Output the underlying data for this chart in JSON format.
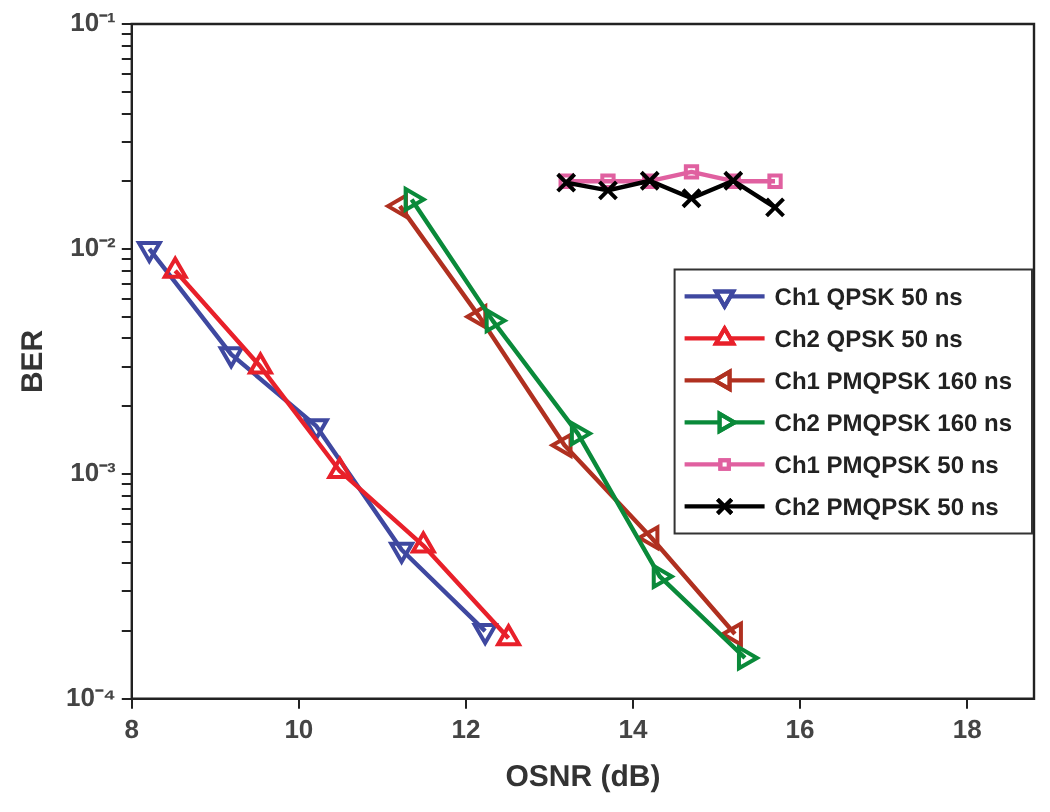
{
  "chart_data": {
    "type": "line",
    "xlabel": "OSNR (dB)",
    "ylabel": "BER",
    "log": "y",
    "legend": "right",
    "grid": false,
    "line_style": "solid",
    "xlim": [
      8,
      18.8
    ],
    "xticks": [
      8,
      10,
      12,
      14,
      16,
      18
    ],
    "ylim": [
      0.0001,
      0.1
    ],
    "yticks": [
      {
        "value": 0.0001,
        "label": "10⁻⁴"
      },
      {
        "value": 0.0002,
        "label": null
      },
      {
        "value": 0.0003,
        "label": null
      },
      {
        "value": 0.0004,
        "label": null
      },
      {
        "value": 0.0005,
        "label": null
      },
      {
        "value": 0.0006,
        "label": null
      },
      {
        "value": 0.0007,
        "label": null
      },
      {
        "value": 0.0008,
        "label": null
      },
      {
        "value": 0.0009,
        "label": null
      },
      {
        "value": 0.001,
        "label": "10⁻³"
      },
      {
        "value": 0.002,
        "label": null
      },
      {
        "value": 0.003,
        "label": null
      },
      {
        "value": 0.004,
        "label": null
      },
      {
        "value": 0.005,
        "label": null
      },
      {
        "value": 0.006,
        "label": null
      },
      {
        "value": 0.007,
        "label": null
      },
      {
        "value": 0.008,
        "label": null
      },
      {
        "value": 0.009,
        "label": null
      },
      {
        "value": 0.01,
        "label": "10⁻²"
      },
      {
        "value": 0.02,
        "label": null
      },
      {
        "value": 0.03,
        "label": null
      },
      {
        "value": 0.04,
        "label": null
      },
      {
        "value": 0.05,
        "label": null
      },
      {
        "value": 0.06,
        "label": null
      },
      {
        "value": 0.07,
        "label": null
      },
      {
        "value": 0.08,
        "label": null
      },
      {
        "value": 0.09,
        "label": null
      },
      {
        "value": 0.1,
        "label": "10⁻¹"
      }
    ],
    "series": [
      {
        "name": "Ch1 QPSK 50 ns",
        "color": "#3f48a0",
        "marker": "triangle-down",
        "x": [
          8.21,
          9.19,
          10.21,
          11.23,
          12.23
        ],
        "values": [
          0.01,
          0.0034,
          0.00163,
          0.00046,
          0.0002
        ]
      },
      {
        "name": "Ch2 QPSK 50 ns",
        "color": "#e8202a",
        "marker": "triangle",
        "x": [
          8.52,
          9.54,
          10.49,
          11.49,
          12.51
        ],
        "values": [
          0.008,
          0.003,
          0.00103,
          0.00048,
          0.000186
        ]
      },
      {
        "name": "Ch1 PMQPSK 160 ns",
        "color": "#b03020",
        "marker": "triangle-left",
        "x": [
          11.21,
          12.16,
          13.18,
          14.22,
          15.22
        ],
        "values": [
          0.0155,
          0.005,
          0.00134,
          0.00052,
          0.000194
        ]
      },
      {
        "name": "Ch2 PMQPSK 160 ns",
        "color": "#0a8a3a",
        "marker": "triangle-right",
        "x": [
          11.35,
          12.32,
          13.34,
          14.32,
          15.34
        ],
        "values": [
          0.0166,
          0.0048,
          0.00151,
          0.00035,
          0.000152
        ]
      },
      {
        "name": "Ch1 PMQPSK 50 ns",
        "color": "#e060a0",
        "marker": "square",
        "x": [
          13.2,
          13.7,
          14.2,
          14.7,
          15.2,
          15.7
        ],
        "values": [
          0.02,
          0.02,
          0.02,
          0.022,
          0.02,
          0.02
        ]
      },
      {
        "name": "Ch2 PMQPSK 50 ns",
        "color": "#000000",
        "marker": "cross",
        "x": [
          13.2,
          13.7,
          14.2,
          14.7,
          15.2,
          15.7
        ],
        "values": [
          0.0197,
          0.0182,
          0.0201,
          0.0168,
          0.0201,
          0.0153
        ]
      }
    ]
  }
}
